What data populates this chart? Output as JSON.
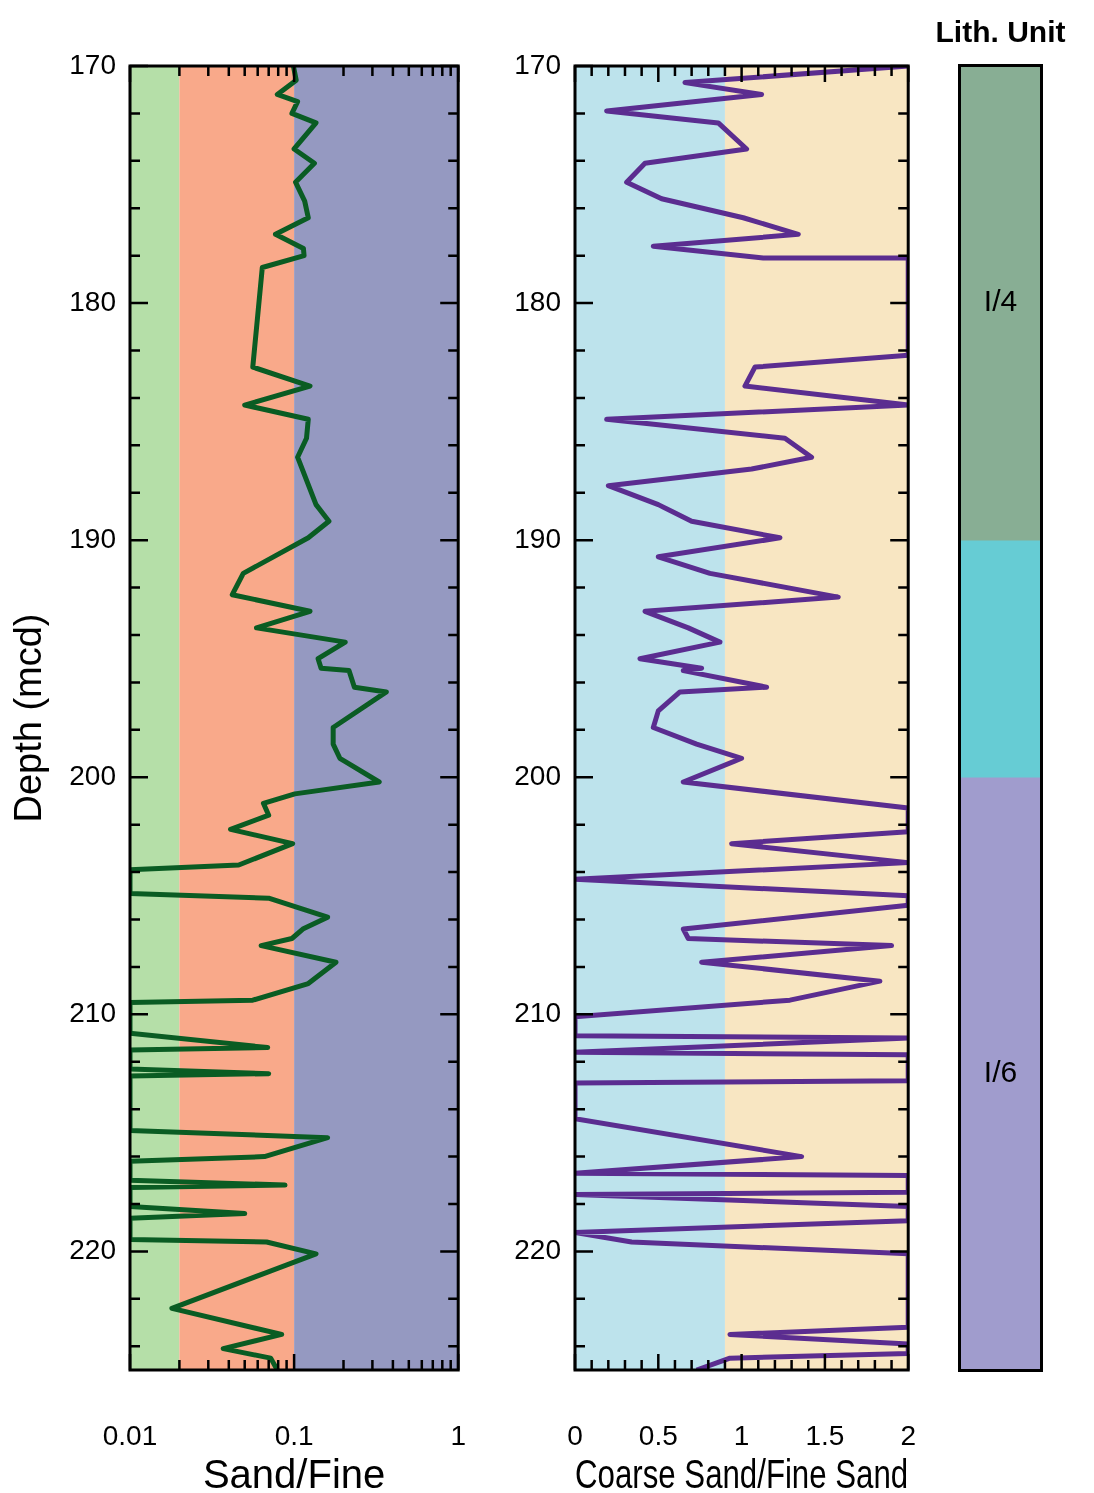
{
  "chart_data": [
    {
      "type": "line",
      "xlabel": "Sand/Fine",
      "ylabel": "Depth (mcd)",
      "log": "x",
      "xlim": [
        0.01,
        1
      ],
      "xticks": [
        0.01,
        {
          "value": 0.02,
          "label": null
        },
        {
          "value": 0.03,
          "label": null
        },
        {
          "value": 0.04,
          "label": null
        },
        {
          "value": 0.05,
          "label": null
        },
        {
          "value": 0.06,
          "label": null
        },
        {
          "value": 0.07,
          "label": null
        },
        {
          "value": 0.08,
          "label": null
        },
        {
          "value": 0.09,
          "label": null
        },
        0.1,
        {
          "value": 0.2,
          "label": null
        },
        {
          "value": 0.3,
          "label": null
        },
        {
          "value": 0.4,
          "label": null
        },
        {
          "value": 0.5,
          "label": null
        },
        {
          "value": 0.6,
          "label": null
        },
        {
          "value": 0.7,
          "label": null
        },
        {
          "value": 0.8,
          "label": null
        },
        {
          "value": 0.9,
          "label": null
        },
        1
      ],
      "ylim": [
        225,
        170
      ],
      "yticks": [
        170,
        {
          "value": 172,
          "label": null
        },
        {
          "value": 174,
          "label": null
        },
        {
          "value": 176,
          "label": null
        },
        {
          "value": 178,
          "label": null
        },
        180,
        {
          "value": 182,
          "label": null
        },
        {
          "value": 184,
          "label": null
        },
        {
          "value": 186,
          "label": null
        },
        {
          "value": 188,
          "label": null
        },
        190,
        {
          "value": 192,
          "label": null
        },
        {
          "value": 194,
          "label": null
        },
        {
          "value": 196,
          "label": null
        },
        {
          "value": 198,
          "label": null
        },
        200,
        {
          "value": 202,
          "label": null
        },
        {
          "value": 204,
          "label": null
        },
        {
          "value": 206,
          "label": null
        },
        {
          "value": 208,
          "label": null
        },
        210,
        {
          "value": 212,
          "label": null
        },
        {
          "value": 214,
          "label": null
        },
        {
          "value": 216,
          "label": null
        },
        {
          "value": 218,
          "label": null
        },
        220,
        {
          "value": 222,
          "label": null
        },
        {
          "value": 224,
          "label": null
        }
      ],
      "bands": [
        {
          "axis": "x",
          "from": 0.01,
          "to": 0.02,
          "color": "#b5dfa8"
        },
        {
          "axis": "x",
          "from": 0.02,
          "to": 0.1,
          "color": "#f9a98a"
        },
        {
          "axis": "x",
          "from": 0.1,
          "to": 1,
          "color": "#9599c1"
        }
      ],
      "series": [
        {
          "color": "#0a5c23",
          "x": [
            0.099,
            0.103,
            0.079,
            0.105,
            0.097,
            0.136,
            0.1,
            0.133,
            0.102,
            0.116,
            0.122,
            0.077,
            0.114,
            0.115,
            0.064,
            0.056,
            0.125,
            0.05,
            0.122,
            0.119,
            0.105,
            0.136,
            0.163,
            0.122,
            0.049,
            0.042,
            0.125,
            0.059,
            0.205,
            0.14,
            0.146,
            0.216,
            0.233,
            0.365,
            0.173,
            0.173,
            0.19,
            0.33,
            0.101,
            0.065,
            0.07,
            0.041,
            0.098,
            0.046,
            0.01,
            0.01,
            0.07,
            0.16,
            0.113,
            0.097,
            0.063,
            0.18,
            0.122,
            0.056,
            0.01,
            0.01,
            0.069,
            0.01,
            0.01,
            0.07,
            0.01,
            0.01,
            0.16,
            0.066,
            0.01,
            0.01,
            0.088,
            0.01,
            0.01,
            0.05,
            0.01,
            0.01,
            0.068,
            0.136,
            0.018,
            0.084,
            0.037,
            0.072,
            0.079
          ],
          "values": [
            170.0,
            170.6,
            171.2,
            171.5,
            172.0,
            172.4,
            173.5,
            174.1,
            174.9,
            175.7,
            176.4,
            177.1,
            177.7,
            178.0,
            178.5,
            182.7,
            183.5,
            184.3,
            184.9,
            185.7,
            186.5,
            188.5,
            189.2,
            189.9,
            191.4,
            192.3,
            193.0,
            193.7,
            194.3,
            195.0,
            195.4,
            195.5,
            196.2,
            196.4,
            197.9,
            198.6,
            199.2,
            200.2,
            200.7,
            201.1,
            201.6,
            202.2,
            202.8,
            203.7,
            203.9,
            204.9,
            205.1,
            205.9,
            206.4,
            206.8,
            207.1,
            207.8,
            208.7,
            209.4,
            209.5,
            210.8,
            211.4,
            211.5,
            212.3,
            212.5,
            212.6,
            214.9,
            215.2,
            216.0,
            216.2,
            217.0,
            217.2,
            217.3,
            218.1,
            218.4,
            218.6,
            219.5,
            219.6,
            220.1,
            222.4,
            223.5,
            224.1,
            224.5,
            225.0
          ]
        }
      ]
    },
    {
      "type": "line",
      "xlabel": "Coarse Sand/Fine Sand",
      "xlim": [
        0,
        2
      ],
      "xticks": [
        0,
        {
          "value": 0.1,
          "label": null
        },
        {
          "value": 0.2,
          "label": null
        },
        {
          "value": 0.3,
          "label": null
        },
        {
          "value": 0.4,
          "label": null
        },
        0.5,
        {
          "value": 0.6,
          "label": null
        },
        {
          "value": 0.7,
          "label": null
        },
        {
          "value": 0.8,
          "label": null
        },
        {
          "value": 0.9,
          "label": null
        },
        1,
        {
          "value": 1.1,
          "label": null
        },
        {
          "value": 1.2,
          "label": null
        },
        {
          "value": 1.3,
          "label": null
        },
        {
          "value": 1.4,
          "label": null
        },
        1.5,
        {
          "value": 1.6,
          "label": null
        },
        {
          "value": 1.7,
          "label": null
        },
        {
          "value": 1.8,
          "label": null
        },
        {
          "value": 1.9,
          "label": null
        },
        2
      ],
      "ylim": [
        225,
        170
      ],
      "yticks": [
        170,
        {
          "value": 172,
          "label": null
        },
        {
          "value": 174,
          "label": null
        },
        {
          "value": 176,
          "label": null
        },
        {
          "value": 178,
          "label": null
        },
        180,
        {
          "value": 182,
          "label": null
        },
        {
          "value": 184,
          "label": null
        },
        {
          "value": 186,
          "label": null
        },
        {
          "value": 188,
          "label": null
        },
        190,
        {
          "value": 192,
          "label": null
        },
        {
          "value": 194,
          "label": null
        },
        {
          "value": 196,
          "label": null
        },
        {
          "value": 198,
          "label": null
        },
        200,
        {
          "value": 202,
          "label": null
        },
        {
          "value": 204,
          "label": null
        },
        {
          "value": 206,
          "label": null
        },
        {
          "value": 208,
          "label": null
        },
        210,
        {
          "value": 212,
          "label": null
        },
        {
          "value": 214,
          "label": null
        },
        {
          "value": 216,
          "label": null
        },
        {
          "value": 218,
          "label": null
        },
        220,
        {
          "value": 222,
          "label": null
        },
        {
          "value": 224,
          "label": null
        }
      ],
      "bands": [
        {
          "axis": "x",
          "from": 0,
          "to": 0.9,
          "color": "#bde3ec"
        },
        {
          "axis": "x",
          "from": 0.9,
          "to": 2,
          "color": "#f8e6c2"
        }
      ],
      "series": [
        {
          "color": "#5b2d90",
          "x": [
            2,
            0.66,
            1.12,
            0.19,
            0.86,
            1.03,
            0.42,
            0.31,
            0.52,
            1.01,
            1.34,
            0.47,
            1.13,
            2,
            2,
            1.08,
            1.02,
            2,
            0.19,
            1.26,
            1.42,
            1.06,
            0.2,
            0.5,
            0.7,
            1.23,
            0.5,
            0.81,
            1.58,
            0.42,
            0.68,
            0.87,
            0.39,
            0.76,
            0.65,
            1.15,
            0.63,
            0.5,
            0.47,
            0.73,
            1.0,
            0.65,
            2,
            2,
            0.94,
            2,
            0,
            2,
            2,
            0.65,
            0.68,
            1.9,
            0.76,
            1.83,
            1.29,
            0,
            0,
            2,
            0,
            2,
            2,
            0,
            0,
            1.36,
            0,
            2,
            2,
            0,
            2,
            2,
            0,
            0.34,
            2,
            2,
            0.93,
            2,
            2,
            0.93,
            0.73
          ],
          "values": [
            170.0,
            170.7,
            171.2,
            171.9,
            172.4,
            173.5,
            174.1,
            174.9,
            175.6,
            176.4,
            177.1,
            177.6,
            178.1,
            178.1,
            182.2,
            182.7,
            183.5,
            184.3,
            184.9,
            185.7,
            186.5,
            187.0,
            187.7,
            188.5,
            189.2,
            189.9,
            190.7,
            191.4,
            192.4,
            193.0,
            193.7,
            194.3,
            195.0,
            195.4,
            195.5,
            196.2,
            196.4,
            197.2,
            197.9,
            198.6,
            199.2,
            200.2,
            201.3,
            202.3,
            202.8,
            203.6,
            204.3,
            205.0,
            205.4,
            206.4,
            206.8,
            207.1,
            207.8,
            208.6,
            209.4,
            210.1,
            210.9,
            211.0,
            211.6,
            211.7,
            212.8,
            212.9,
            214.4,
            216.0,
            216.7,
            216.8,
            217.5,
            217.6,
            218.1,
            218.7,
            219.2,
            219.6,
            220.1,
            223.2,
            223.5,
            223.9,
            224.3,
            224.5,
            225.0
          ]
        }
      ]
    },
    {
      "type": "bar",
      "title": "Lith. Unit",
      "categories": [
        null
      ],
      "ylim": [
        225,
        170
      ],
      "tick_labels": false,
      "series": [
        {
          "name": "I/4",
          "color": "#88ae94",
          "base": [
            170
          ],
          "values": [
            20
          ]
        },
        {
          "color": "#66ccd4",
          "base": [
            190
          ],
          "values": [
            10
          ]
        },
        {
          "name": "I/6",
          "color": "#a09ccd",
          "base": [
            200
          ],
          "values": [
            25
          ]
        }
      ]
    }
  ]
}
